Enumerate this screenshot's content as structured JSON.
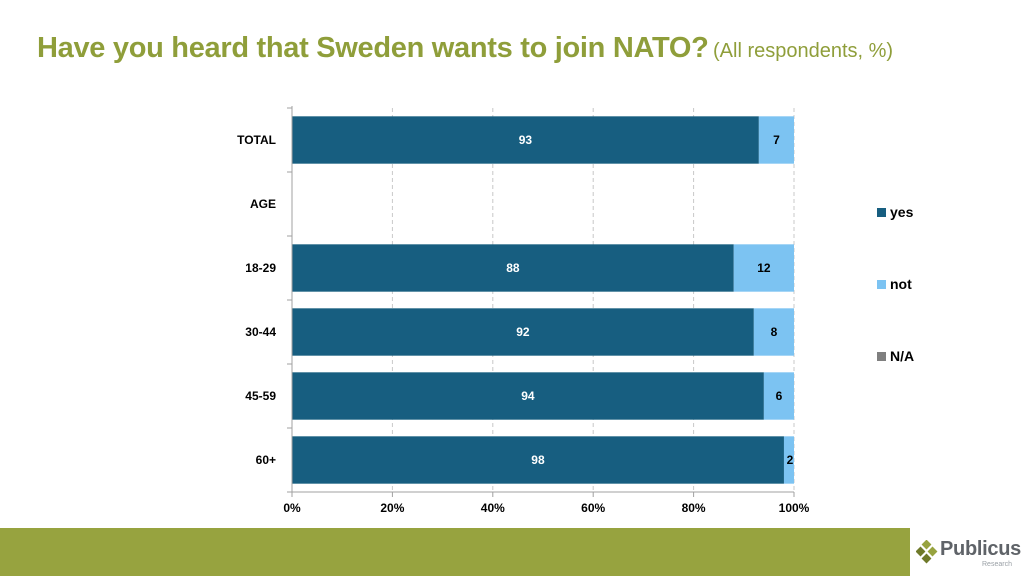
{
  "title": {
    "main": "Have you heard that Sweden wants to join NATO?",
    "sub": "(All respondents, %)"
  },
  "colors": {
    "yes": "#175e80",
    "not": "#7cc3f2",
    "na": "#7f7f7f",
    "title": "#8f9e3a",
    "footer": "#97a33f"
  },
  "chart_data": {
    "type": "bar",
    "orientation": "horizontal",
    "stacked": true,
    "title": "Have you heard that Sweden wants to join NATO? (All respondents, %)",
    "categories": [
      "TOTAL",
      "AGE",
      "18-29",
      "30-44",
      "45-59",
      "60+"
    ],
    "series": [
      {
        "name": "yes",
        "values": [
          93,
          null,
          88,
          92,
          94,
          98
        ]
      },
      {
        "name": "not",
        "values": [
          7,
          null,
          12,
          8,
          6,
          2
        ]
      },
      {
        "name": "N/A",
        "values": [
          0,
          null,
          0,
          0,
          0,
          0
        ]
      }
    ],
    "xlim": [
      0,
      100
    ],
    "xticks": [
      "0%",
      "20%",
      "40%",
      "60%",
      "80%",
      "100%"
    ],
    "xtick_values": [
      0,
      20,
      40,
      60,
      80,
      100
    ],
    "xlabel": "",
    "ylabel": "",
    "grid": "vertical dashed",
    "legend": {
      "position": "right",
      "entries": [
        "yes",
        "not",
        "N/A"
      ]
    }
  },
  "logo": {
    "name": "Publicus",
    "tagline": "Research"
  }
}
